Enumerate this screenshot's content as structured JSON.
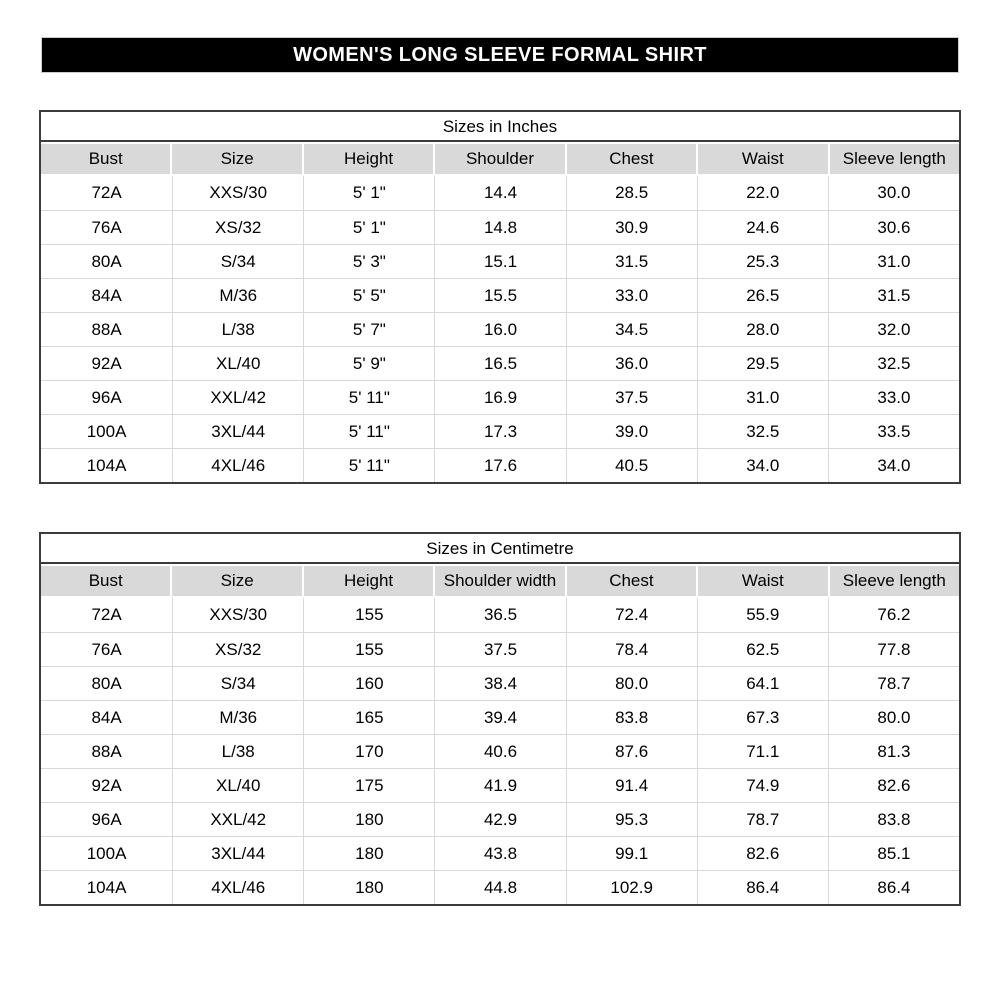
{
  "banner": {
    "title": "WOMEN'S LONG SLEEVE FORMAL SHIRT",
    "bg_color": "#000000",
    "text_color": "#ffffff"
  },
  "colors": {
    "table_border": "#3b3b3b",
    "header_fill": "#d9d9d9",
    "gridline": "#d9d9d9"
  },
  "tables": [
    {
      "title": "Sizes in Inches",
      "headers": [
        "Bust",
        "Size",
        "Height",
        "Shoulder",
        "Chest",
        "Waist",
        "Sleeve length"
      ],
      "rows": [
        [
          "72A",
          "XXS/30",
          "5' 1\"",
          "14.4",
          "28.5",
          "22.0",
          "30.0"
        ],
        [
          "76A",
          "XS/32",
          "5' 1\"",
          "14.8",
          "30.9",
          "24.6",
          "30.6"
        ],
        [
          "80A",
          "S/34",
          "5' 3\"",
          "15.1",
          "31.5",
          "25.3",
          "31.0"
        ],
        [
          "84A",
          "M/36",
          "5' 5\"",
          "15.5",
          "33.0",
          "26.5",
          "31.5"
        ],
        [
          "88A",
          "L/38",
          "5' 7\"",
          "16.0",
          "34.5",
          "28.0",
          "32.0"
        ],
        [
          "92A",
          "XL/40",
          "5' 9\"",
          "16.5",
          "36.0",
          "29.5",
          "32.5"
        ],
        [
          "96A",
          "XXL/42",
          "5' 11\"",
          "16.9",
          "37.5",
          "31.0",
          "33.0"
        ],
        [
          "100A",
          "3XL/44",
          "5' 11\"",
          "17.3",
          "39.0",
          "32.5",
          "33.5"
        ],
        [
          "104A",
          "4XL/46",
          "5' 11\"",
          "17.6",
          "40.5",
          "34.0",
          "34.0"
        ]
      ]
    },
    {
      "title": "Sizes in Centimetre",
      "headers": [
        "Bust",
        "Size",
        "Height",
        "Shoulder width",
        "Chest",
        "Waist",
        "Sleeve length"
      ],
      "rows": [
        [
          "72A",
          "XXS/30",
          "155",
          "36.5",
          "72.4",
          "55.9",
          "76.2"
        ],
        [
          "76A",
          "XS/32",
          "155",
          "37.5",
          "78.4",
          "62.5",
          "77.8"
        ],
        [
          "80A",
          "S/34",
          "160",
          "38.4",
          "80.0",
          "64.1",
          "78.7"
        ],
        [
          "84A",
          "M/36",
          "165",
          "39.4",
          "83.8",
          "67.3",
          "80.0"
        ],
        [
          "88A",
          "L/38",
          "170",
          "40.6",
          "87.6",
          "71.1",
          "81.3"
        ],
        [
          "92A",
          "XL/40",
          "175",
          "41.9",
          "91.4",
          "74.9",
          "82.6"
        ],
        [
          "96A",
          "XXL/42",
          "180",
          "42.9",
          "95.3",
          "78.7",
          "83.8"
        ],
        [
          "100A",
          "3XL/44",
          "180",
          "43.8",
          "99.1",
          "82.6",
          "85.1"
        ],
        [
          "104A",
          "4XL/46",
          "180",
          "44.8",
          "102.9",
          "86.4",
          "86.4"
        ]
      ]
    }
  ]
}
